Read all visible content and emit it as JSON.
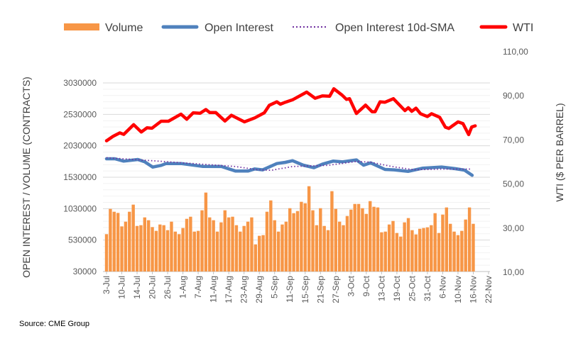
{
  "chart_data": {
    "type": "bar+line",
    "title": "",
    "source": "Source: CME Group",
    "ylabel_left": "OPEN INTEREST / VOLUME (CONTRACTS)",
    "ylabel_right": "WTI ($ PER BARREL)",
    "ylim_left": [
      30000,
      3030000
    ],
    "ylim_right": [
      10,
      110
    ],
    "yticks_left": [
      "3030000",
      "2530000",
      "2030000",
      "1530000",
      "1030000",
      "530000",
      "30000"
    ],
    "yticks_right": [
      "110,00",
      "90,00",
      "70,00",
      "50,00",
      "30,00",
      "10,00"
    ],
    "x_tick_labels": [
      "3-Jul",
      "10-Jul",
      "14-Jul",
      "20-Jul",
      "26-Jul",
      "1-Aug",
      "7-Aug",
      "11-Aug",
      "17-Aug",
      "23-Aug",
      "29-Aug",
      "5-Sep",
      "11-Sep",
      "15-Sep",
      "21-Sep",
      "27-Sep",
      "3-Oct",
      "9-Oct",
      "13-Oct",
      "19-Oct",
      "25-Oct",
      "31-Oct",
      "6-Nov",
      "10-Nov",
      "16-Nov",
      "22-Nov"
    ],
    "x_tick_every": 4,
    "legend": [
      "Volume",
      "Open Interest",
      "Open Interest 10d-SMA",
      "WTI"
    ],
    "legend_position": "top",
    "colors": {
      "volume": "#f79646",
      "open_interest": "#4f81bd",
      "sma": "#7030a0",
      "wti": "#ff0000"
    },
    "volume": [
      624000,
      1026000,
      981000,
      962000,
      748000,
      823000,
      981000,
      1094000,
      755000,
      767000,
      891000,
      846000,
      737000,
      677000,
      778000,
      767000,
      688000,
      823000,
      665000,
      624000,
      722000,
      868000,
      902000,
      665000,
      677000,
      1004000,
      1286000,
      891000,
      846000,
      665000,
      812000,
      1004000,
      891000,
      902000,
      767000,
      665000,
      755000,
      823000,
      891000,
      462000,
      598000,
      609000,
      981000,
      1161000,
      846000,
      665000,
      778000,
      823000,
      1037000,
      958000,
      992000,
      1139000,
      1116000,
      1387000,
      1004000,
      767000,
      1037000,
      755000,
      688000,
      1308000,
      1026000,
      823000,
      767000,
      913000,
      1015000,
      1105000,
      1105000,
      1037000,
      947000,
      1150000,
      1060000,
      1049000,
      654000,
      665000,
      778000,
      834000,
      643000,
      586000,
      812000,
      880000,
      688000,
      620000,
      710000,
      722000,
      733000,
      767000,
      958000,
      643000,
      936000,
      1049000,
      789000,
      665000,
      609000,
      677000,
      857000,
      1049000,
      789000
    ],
    "open_interest": [
      [
        0,
        1823000
      ],
      [
        2.2,
        1823000
      ],
      [
        4.5,
        1786000
      ],
      [
        8.2,
        1812000
      ],
      [
        10,
        1775000
      ],
      [
        12.1,
        1691000
      ],
      [
        14.3,
        1718000
      ],
      [
        15.6,
        1748000
      ],
      [
        19.5,
        1748000
      ],
      [
        25.1,
        1703000
      ],
      [
        30.1,
        1700000
      ],
      [
        33.8,
        1628000
      ],
      [
        37,
        1628000
      ],
      [
        38.8,
        1662000
      ],
      [
        40.9,
        1647000
      ],
      [
        44.6,
        1748000
      ],
      [
        46.8,
        1767000
      ],
      [
        48.7,
        1793000
      ],
      [
        51.5,
        1722000
      ],
      [
        54.3,
        1681000
      ],
      [
        56.5,
        1737000
      ],
      [
        59.3,
        1786000
      ],
      [
        61.7,
        1775000
      ],
      [
        65.4,
        1805000
      ],
      [
        67.3,
        1722000
      ],
      [
        69.1,
        1759000
      ],
      [
        72.9,
        1654000
      ],
      [
        75.3,
        1647000
      ],
      [
        79,
        1624000
      ],
      [
        82.7,
        1673000
      ],
      [
        87.7,
        1692000
      ],
      [
        91.4,
        1665000
      ],
      [
        93.7,
        1643000
      ],
      [
        95.7,
        1560000
      ]
    ],
    "open_interest_sma": [
      [
        0,
        1840000
      ],
      [
        12.5,
        1790000
      ],
      [
        33.8,
        1700000
      ],
      [
        39.4,
        1650000
      ],
      [
        43.1,
        1640000
      ],
      [
        48.7,
        1700000
      ],
      [
        58,
        1720000
      ],
      [
        65.4,
        1780000
      ],
      [
        69.1,
        1770000
      ],
      [
        74.7,
        1700000
      ],
      [
        80.3,
        1650000
      ],
      [
        87.7,
        1660000
      ],
      [
        95.2,
        1660000
      ]
    ],
    "wti": [
      [
        0,
        69.6
      ],
      [
        1.7,
        71.6
      ],
      [
        3.5,
        73.2
      ],
      [
        4.5,
        72.5
      ],
      [
        7.1,
        76.9
      ],
      [
        9.1,
        73.6
      ],
      [
        10.6,
        75.5
      ],
      [
        11.9,
        75.3
      ],
      [
        14.3,
        78.5
      ],
      [
        16.2,
        78.5
      ],
      [
        19.5,
        81.7
      ],
      [
        21,
        79.4
      ],
      [
        22.7,
        82.3
      ],
      [
        24.5,
        82.1
      ],
      [
        26,
        83.8
      ],
      [
        27,
        82.4
      ],
      [
        28.6,
        82.4
      ],
      [
        31,
        78.6
      ],
      [
        32.7,
        81.2
      ],
      [
        36.1,
        78.2
      ],
      [
        38.8,
        80.0
      ],
      [
        41.3,
        82.3
      ],
      [
        42.6,
        85.7
      ],
      [
        44.6,
        87.3
      ],
      [
        45.5,
        86.2
      ],
      [
        46.8,
        87.1
      ],
      [
        48.7,
        88.2
      ],
      [
        52.4,
        91.7
      ],
      [
        54.6,
        88.9
      ],
      [
        56.5,
        90.0
      ],
      [
        58.4,
        89.8
      ],
      [
        59.5,
        93.2
      ],
      [
        61.7,
        90.3
      ],
      [
        62.8,
        88.4
      ],
      [
        63.6,
        88.7
      ],
      [
        65.4,
        82.0
      ],
      [
        67.8,
        85.8
      ],
      [
        69.5,
        82.8
      ],
      [
        70.3,
        82.8
      ],
      [
        71.6,
        87.3
      ],
      [
        72.9,
        87.1
      ],
      [
        75.1,
        88.7
      ],
      [
        78.1,
        83.3
      ],
      [
        79,
        84.6
      ],
      [
        79.9,
        83.0
      ],
      [
        81,
        84.4
      ],
      [
        82.2,
        81.9
      ],
      [
        84,
        80.6
      ],
      [
        85.1,
        81.9
      ],
      [
        87.2,
        80.3
      ],
      [
        88.7,
        75.8
      ],
      [
        89.6,
        75.2
      ],
      [
        92,
        78.2
      ],
      [
        93.3,
        77.4
      ],
      [
        94.8,
        72.4
      ],
      [
        95.6,
        75.9
      ],
      [
        96.5,
        76.4
      ]
    ]
  }
}
